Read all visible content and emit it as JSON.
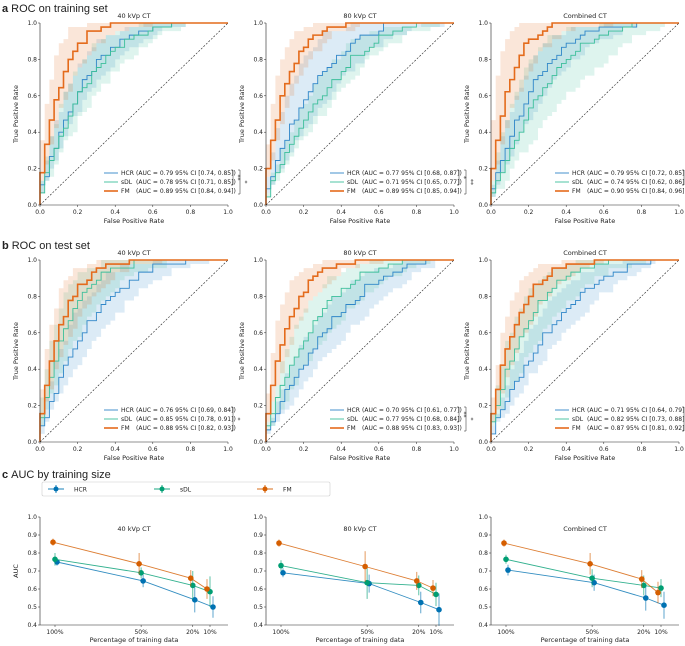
{
  "colors": {
    "HCR": "#2f86c8",
    "sDL": "#3cbf9a",
    "FM": "#e46b1c",
    "HCR_c": "#0072b2",
    "sDL_c": "#009e73",
    "FM_c": "#d55e00"
  },
  "panels": [
    {
      "letter": "a",
      "title": "ROC on training set"
    },
    {
      "letter": "b",
      "title": "ROC on test set"
    },
    {
      "letter": "c",
      "title": "AUC by training size"
    }
  ],
  "chart_data": [
    {
      "type": "line",
      "panel": "a",
      "title": "40 kVp CT",
      "xlabel": "False Positive Rate",
      "ylabel": "True Positive Rate",
      "xlim": [
        0,
        1
      ],
      "ylim": [
        0,
        1
      ],
      "series": [
        {
          "name": "HCR",
          "auc": 0.79,
          "ci": [
            0.74,
            0.85
          ],
          "legend": "(AUC = 0.79 95% CI [0.74, 0.85])"
        },
        {
          "name": "sDL",
          "auc": 0.78,
          "ci": [
            0.71,
            0.85
          ],
          "legend": "(AUC = 0.78 95% CI [0.71, 0.85])"
        },
        {
          "name": "FM",
          "auc": 0.89,
          "ci": [
            0.84,
            0.94
          ],
          "legend": "(AUC = 0.89 95% CI [0.84, 0.94])"
        }
      ],
      "significance": [
        "**",
        "*"
      ]
    },
    {
      "type": "line",
      "panel": "a",
      "title": "80 kVp CT",
      "xlabel": "False Positive Rate",
      "ylabel": "True Positive Rate",
      "xlim": [
        0,
        1
      ],
      "ylim": [
        0,
        1
      ],
      "series": [
        {
          "name": "HCR",
          "auc": 0.77,
          "ci": [
            0.68,
            0.87
          ],
          "legend": "(AUC = 0.77 95% CI [0.68, 0.87])"
        },
        {
          "name": "sDL",
          "auc": 0.71,
          "ci": [
            0.65,
            0.77
          ],
          "legend": "(AUC = 0.71 95% CI [0.65, 0.77])"
        },
        {
          "name": "FM",
          "auc": 0.89,
          "ci": [
            0.85,
            0.94
          ],
          "legend": "(AUC = 0.89 95% CI [0.85, 0.94])"
        }
      ],
      "significance": [
        "*",
        "**"
      ]
    },
    {
      "type": "line",
      "panel": "a",
      "title": "Combined CT",
      "xlabel": "False Positive Rate",
      "ylabel": "True Positive Rate",
      "xlim": [
        0,
        1
      ],
      "ylim": [
        0,
        1
      ],
      "series": [
        {
          "name": "HCR",
          "auc": 0.79,
          "ci": [
            0.72,
            0.85
          ],
          "legend": "(AUC = 0.79 95% CI [0.72, 0.85])"
        },
        {
          "name": "sDL",
          "auc": 0.74,
          "ci": [
            0.62,
            0.86
          ],
          "legend": "(AUC = 0.74 95% CI [0.62, 0.86])"
        },
        {
          "name": "FM",
          "auc": 0.9,
          "ci": [
            0.84,
            0.96
          ],
          "legend": "(AUC = 0.90 95% CI [0.84, 0.96])"
        }
      ],
      "significance": [
        "**",
        "*"
      ]
    },
    {
      "type": "line",
      "panel": "b",
      "title": "40 kVp CT",
      "xlabel": "False Positive Rate",
      "ylabel": "True Positive Rate",
      "xlim": [
        0,
        1
      ],
      "ylim": [
        0,
        1
      ],
      "series": [
        {
          "name": "HCR",
          "auc": 0.76,
          "ci": [
            0.69,
            0.84
          ],
          "legend": "(AUC = 0.76 95% CI [0.69, 0.84])"
        },
        {
          "name": "sDL",
          "auc": 0.85,
          "ci": [
            0.78,
            0.91
          ],
          "legend": "(AUC = 0.85 95% CI [0.78, 0.91])"
        },
        {
          "name": "FM",
          "auc": 0.88,
          "ci": [
            0.82,
            0.93
          ],
          "legend": "(AUC = 0.88 95% CI [0.82, 0.93])"
        }
      ],
      "significance": [
        "*"
      ]
    },
    {
      "type": "line",
      "panel": "b",
      "title": "80 kVp CT",
      "xlabel": "False Positive Rate",
      "ylabel": "True Positive Rate",
      "xlim": [
        0,
        1
      ],
      "ylim": [
        0,
        1
      ],
      "series": [
        {
          "name": "HCR",
          "auc": 0.7,
          "ci": [
            0.61,
            0.77
          ],
          "legend": "(AUC = 0.70 95% CI [0.61, 0.77])"
        },
        {
          "name": "sDL",
          "auc": 0.77,
          "ci": [
            0.68,
            0.84
          ],
          "legend": "(AUC = 0.77 95% CI [0.68, 0.84])"
        },
        {
          "name": "FM",
          "auc": 0.88,
          "ci": [
            0.83,
            0.93
          ],
          "legend": "(AUC = 0.88 95% CI [0.83, 0.93])"
        }
      ],
      "significance": [
        "**",
        "*"
      ]
    },
    {
      "type": "line",
      "panel": "b",
      "title": "Combined CT",
      "xlabel": "False Positive Rate",
      "ylabel": "True Positive Rate",
      "xlim": [
        0,
        1
      ],
      "ylim": [
        0,
        1
      ],
      "series": [
        {
          "name": "HCR",
          "auc": 0.71,
          "ci": [
            0.64,
            0.79
          ],
          "legend": "(AUC = 0.71 95% CI [0.64, 0.79])"
        },
        {
          "name": "sDL",
          "auc": 0.82,
          "ci": [
            0.73,
            0.88
          ],
          "legend": "(AUC = 0.82 95% CI [0.73, 0.88])"
        },
        {
          "name": "FM",
          "auc": 0.87,
          "ci": [
            0.81,
            0.92
          ],
          "legend": "(AUC = 0.87 95% CI [0.81, 0.92])"
        }
      ],
      "significance": [
        "**"
      ]
    },
    {
      "type": "line",
      "panel": "c",
      "title": "40 kVp CT",
      "xlabel": "Percentage of training data",
      "ylabel": "AUC",
      "ylim": [
        0.4,
        1.0
      ],
      "x": [
        100,
        50,
        20,
        10
      ],
      "xticklabels": [
        "100%",
        "50%",
        "20%",
        "10%"
      ],
      "series": [
        {
          "name": "HCR",
          "values": [
            0.75,
            0.645,
            0.54,
            0.5
          ],
          "err": [
            0.02,
            0.035,
            0.07,
            0.06
          ]
        },
        {
          "name": "sDL",
          "values": [
            0.765,
            0.69,
            0.62,
            0.585
          ],
          "err": [
            0.035,
            0.03,
            0.08,
            0.085
          ]
        },
        {
          "name": "FM",
          "values": [
            0.86,
            0.74,
            0.66,
            0.6
          ],
          "err": [
            0.02,
            0.06,
            0.045,
            0.055
          ]
        }
      ]
    },
    {
      "type": "line",
      "panel": "c",
      "title": "80 kVp CT",
      "xlabel": "Percentage of training data",
      "ylabel": "",
      "ylim": [
        0.4,
        1.0
      ],
      "x": [
        100,
        50,
        20,
        10
      ],
      "xticklabels": [
        "100%",
        "50%",
        "20%",
        "10%"
      ],
      "series": [
        {
          "name": "HCR",
          "values": [
            0.69,
            0.63,
            0.525,
            0.485
          ],
          "err": [
            0.025,
            0.05,
            0.06,
            0.09
          ]
        },
        {
          "name": "sDL",
          "values": [
            0.73,
            0.635,
            0.62,
            0.57
          ],
          "err": [
            0.03,
            0.09,
            0.055,
            0.065
          ]
        },
        {
          "name": "FM",
          "values": [
            0.855,
            0.725,
            0.645,
            0.605
          ],
          "err": [
            0.02,
            0.085,
            0.05,
            0.045
          ]
        }
      ]
    },
    {
      "type": "line",
      "panel": "c",
      "title": "Combined CT",
      "xlabel": "Percentage of training data",
      "ylabel": "",
      "ylim": [
        0.4,
        1.0
      ],
      "x": [
        100,
        50,
        20,
        10
      ],
      "xticklabels": [
        "100%",
        "50%",
        "20%",
        "10%"
      ],
      "series": [
        {
          "name": "HCR",
          "values": [
            0.705,
            0.635,
            0.55,
            0.51
          ],
          "err": [
            0.03,
            0.045,
            0.07,
            0.075
          ]
        },
        {
          "name": "sDL",
          "values": [
            0.765,
            0.66,
            0.62,
            0.605
          ],
          "err": [
            0.025,
            0.05,
            0.055,
            0.05
          ]
        },
        {
          "name": "FM",
          "values": [
            0.855,
            0.74,
            0.655,
            0.58
          ],
          "err": [
            0.02,
            0.06,
            0.05,
            0.06
          ]
        }
      ]
    }
  ],
  "c_legend": [
    "HCR",
    "sDL",
    "FM"
  ]
}
